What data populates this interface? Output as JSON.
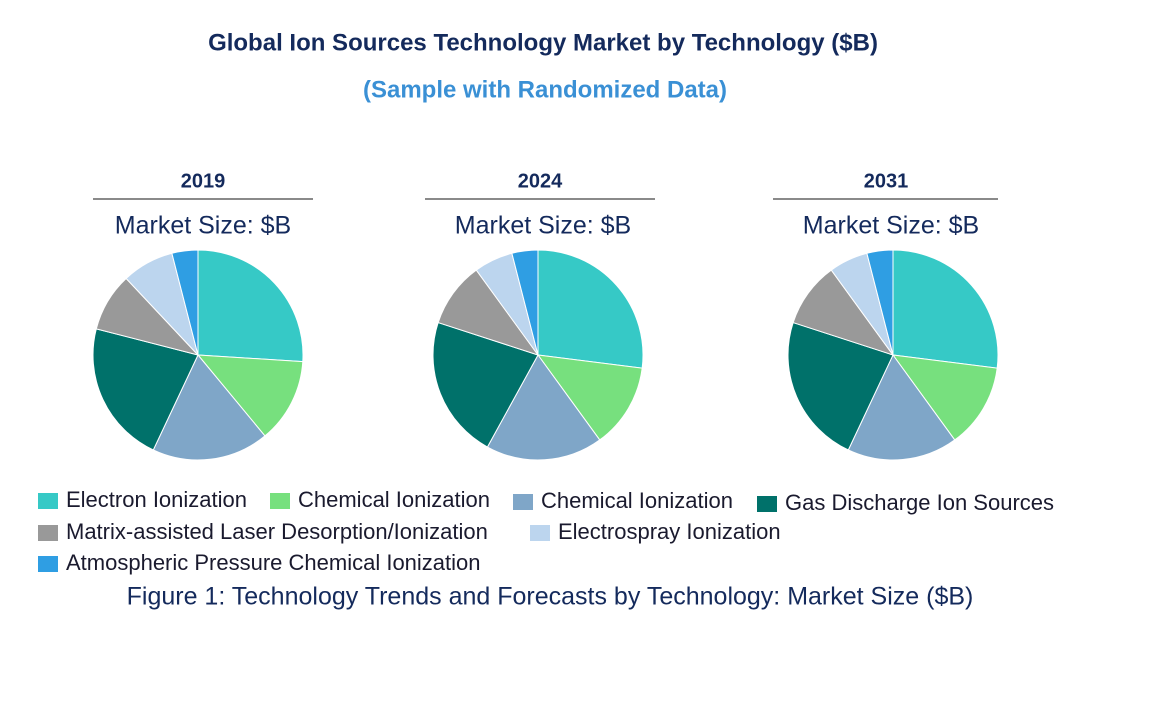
{
  "title": "Global Ion Sources Technology Market by Technology ($B)",
  "subtitle": "(Sample with Randomized Data)",
  "caption": "Figure 1: Technology Trends and Forecasts by Technology: Market Size ($B)",
  "legend": {
    "labels": [
      "Electron Ionization",
      "Chemical Ionization",
      "Chemical Ionization",
      "Gas Discharge Ion Sources",
      "Matrix-assisted Laser Desorption/Ionization",
      "Electrospray Ionization",
      "Atmospheric Pressure Chemical Ionization"
    ],
    "colors": [
      "#36c9c6",
      "#77e07e",
      "#7fa6c8",
      "#00716a",
      "#999999",
      "#bcd5ee",
      "#2f9ee3"
    ]
  },
  "chart_data": [
    {
      "type": "pie",
      "title": "2019",
      "subtitle": "Market Size: $B",
      "values": [
        26,
        13,
        18,
        22,
        9,
        8,
        4
      ]
    },
    {
      "type": "pie",
      "title": "2024",
      "subtitle": "Market Size: $B",
      "values": [
        27,
        13,
        18,
        22,
        10,
        6,
        4
      ]
    },
    {
      "type": "pie",
      "title": "2031",
      "subtitle": "Market Size: $B",
      "values": [
        27,
        13,
        17,
        23,
        10,
        6,
        4
      ]
    }
  ]
}
